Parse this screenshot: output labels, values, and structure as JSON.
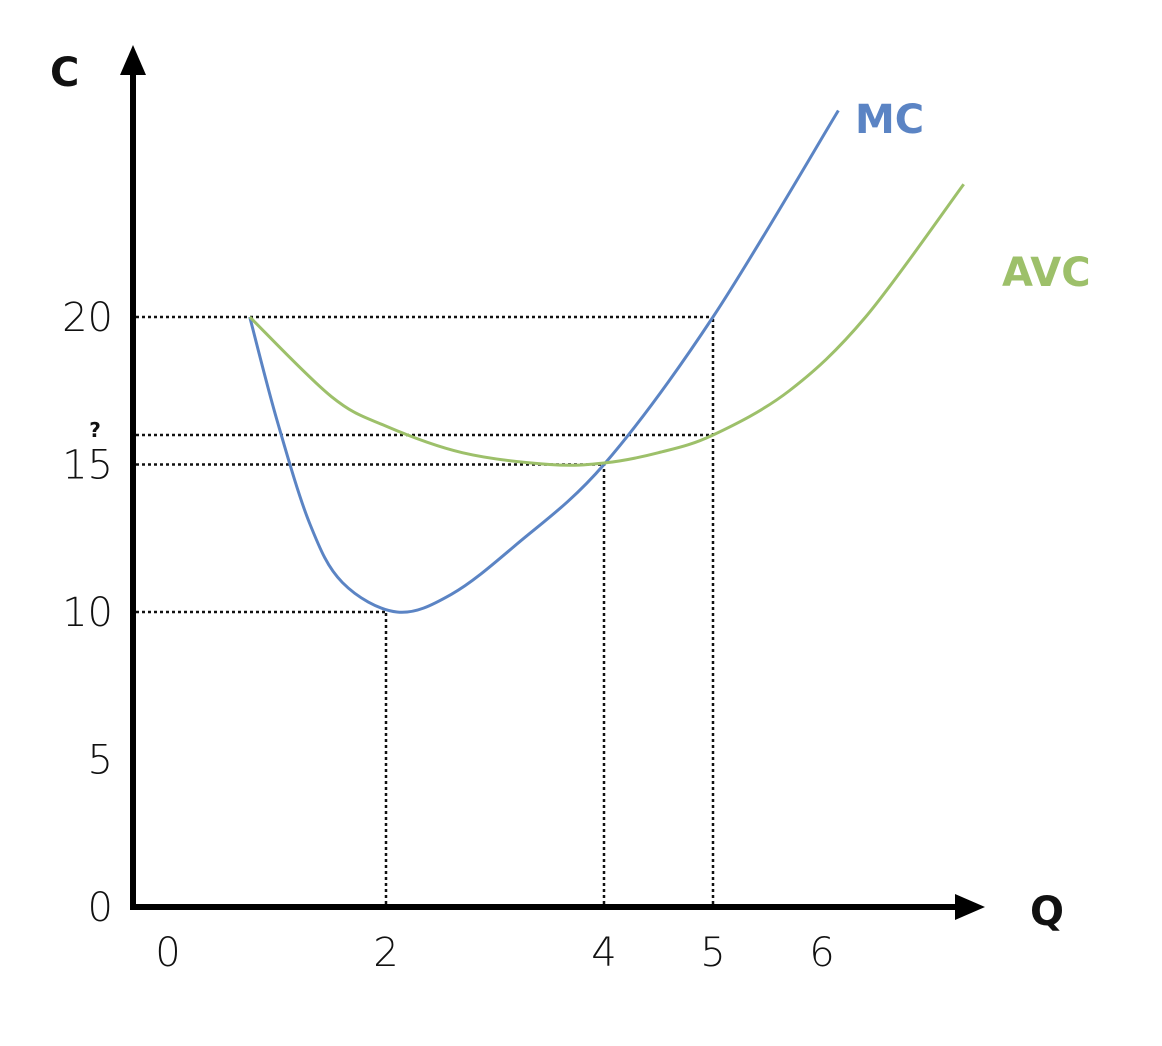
{
  "chart_data": {
    "type": "line",
    "title": "",
    "xlabel": "Q",
    "ylabel": "C",
    "x_ticks": [
      "0",
      "2",
      "4",
      "5",
      "6"
    ],
    "x_tick_values": [
      0,
      2,
      4,
      5,
      6
    ],
    "y_ticks": [
      "0",
      "5",
      "10",
      "15",
      "20"
    ],
    "y_tick_values": [
      0,
      5,
      10,
      15,
      20
    ],
    "y_unknown_marker": {
      "label": "?",
      "value": 16
    },
    "xlim": [
      0,
      7.5
    ],
    "ylim": [
      0,
      28
    ],
    "grid": false,
    "series": [
      {
        "name": "MC",
        "color": "#5b84c4",
        "x": [
          0.75,
          1.0,
          1.3,
          1.6,
          2.1,
          2.6,
          3.2,
          4.0,
          5.0,
          6.15
        ],
        "y": [
          20,
          16.5,
          13,
          11,
          10,
          10.6,
          12.3,
          15,
          20,
          27
        ]
      },
      {
        "name": "AVC",
        "color": "#9dc06a",
        "x": [
          0.75,
          1.5,
          2.0,
          2.7,
          3.5,
          4.0,
          4.5,
          5.0,
          5.7,
          6.4,
          7.3
        ],
        "y": [
          20,
          17.3,
          16.3,
          15.4,
          15.0,
          15.05,
          15.4,
          16,
          17.5,
          20,
          24.5
        ]
      }
    ],
    "reference_lines": [
      {
        "type": "h",
        "y": 20,
        "to_x": 5
      },
      {
        "type": "h",
        "y": 16,
        "to_x": 5
      },
      {
        "type": "h",
        "y": 15,
        "to_x": 4
      },
      {
        "type": "h",
        "y": 10,
        "to_x": 2
      },
      {
        "type": "v",
        "x": 2,
        "to_y": 10
      },
      {
        "type": "v",
        "x": 4,
        "to_y": 15
      },
      {
        "type": "v",
        "x": 5,
        "to_y": 20
      }
    ]
  }
}
